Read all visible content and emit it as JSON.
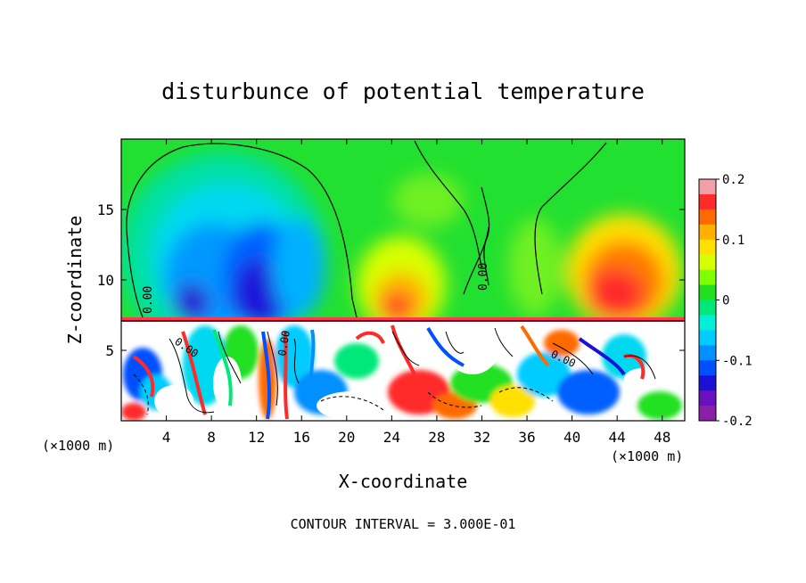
{
  "chart_data": {
    "type": "heatmap",
    "title": "disturbunce of potential temperature",
    "xlabel": "X-coordinate",
    "ylabel": "Z-coordinate",
    "x_unit_left": "(×1000 m)",
    "x_unit_right": "(×1000 m)",
    "xlim": [
      0,
      50
    ],
    "ylim": [
      0,
      20
    ],
    "xticks": [
      "4",
      "8",
      "12",
      "16",
      "20",
      "24",
      "28",
      "32",
      "36",
      "40",
      "44",
      "48"
    ],
    "yticks": [
      "5",
      "10",
      "15"
    ],
    "colorbar": {
      "ticks": [
        "0.2",
        "0.1",
        "0",
        "-0.1",
        "-0.2"
      ],
      "range": [
        -0.2,
        0.2
      ],
      "colors": [
        "#f2a0a8",
        "#ff2a2a",
        "#ff6a00",
        "#ffb000",
        "#ffe000",
        "#d8ff00",
        "#80ff00",
        "#20e020",
        "#00e87a",
        "#00f0d8",
        "#00ccff",
        "#0090ff",
        "#0050ff",
        "#1a10d8",
        "#6a10c0",
        "#8a20a8"
      ]
    },
    "contour_labels": [
      "0.00",
      "0.00",
      "0.00",
      "0.00",
      "0.00"
    ],
    "footer": "CONTOUR INTERVAL = 3.000E-01"
  }
}
